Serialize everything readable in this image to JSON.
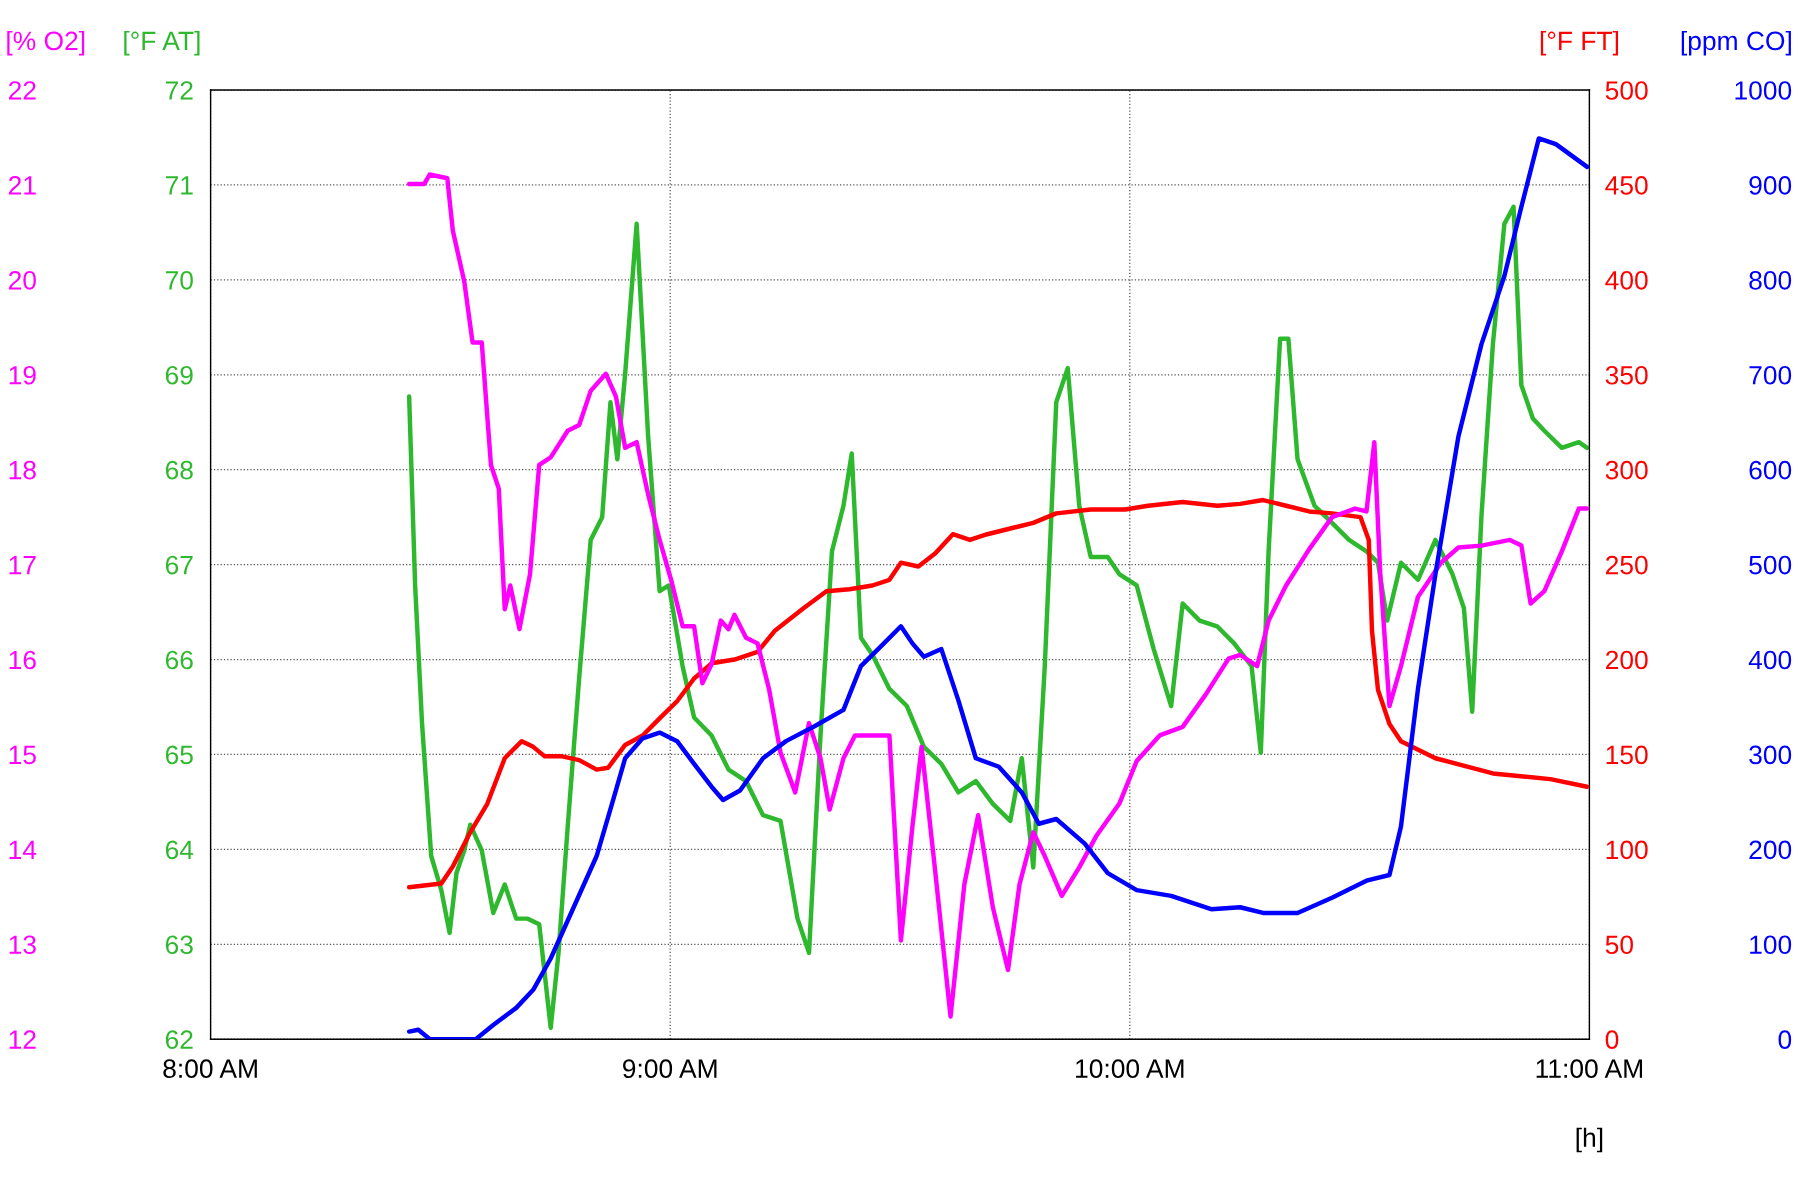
{
  "chart_data": [
    {
      "type": "line",
      "xlabel": "[h]",
      "ylabel": "[°F AT]",
      "y2label": "[°F FT]",
      "xlim": [
        8,
        11
      ],
      "xticks": [
        {
          "value": 8,
          "label": "8:00 AM"
        },
        {
          "value": 9,
          "label": "9:00 AM"
        },
        {
          "value": 10,
          "label": "10:00 AM"
        },
        {
          "value": 11,
          "label": "11:00 AM"
        }
      ],
      "ylim": [
        62,
        72
      ],
      "yticks": [
        62,
        63,
        64,
        65,
        66,
        67,
        68,
        69,
        70,
        71,
        72
      ],
      "y2lim": [
        0,
        500
      ],
      "y2ticks": [
        0,
        50,
        100,
        150,
        200,
        250,
        300,
        350,
        400,
        450,
        500
      ],
      "grid": true,
      "line_style": "solid",
      "series": [
        {
          "axis": "y2",
          "color": "#ff0000",
          "x": [
            8.432,
            8.502,
            8.527,
            8.565,
            8.602,
            8.64,
            8.677,
            8.702,
            8.727,
            8.765,
            8.802,
            8.84,
            8.865,
            8.902,
            8.94,
            8.977,
            9.015,
            9.052,
            9.09,
            9.14,
            9.19,
            9.227,
            9.29,
            9.34,
            9.39,
            9.44,
            9.477,
            9.502,
            9.54,
            9.577,
            9.615,
            9.652,
            9.69,
            9.74,
            9.79,
            9.84,
            9.915,
            9.99,
            10.04,
            10.115,
            10.19,
            10.24,
            10.29,
            10.34,
            10.39,
            10.44,
            10.502,
            10.52,
            10.527,
            10.54,
            10.565,
            10.59,
            10.665,
            10.79,
            10.915,
            10.995
          ],
          "values": [
            80,
            82,
            91,
            109,
            124,
            148,
            157,
            154,
            149,
            149,
            147,
            142,
            143,
            155,
            160,
            169,
            178,
            190,
            198,
            200,
            204,
            215,
            227,
            236,
            237,
            239,
            242,
            251,
            249,
            256,
            266,
            263,
            266,
            269,
            272,
            277,
            279,
            279,
            281,
            283,
            281,
            282,
            284,
            281,
            278,
            277,
            275,
            263,
            215,
            184,
            166,
            157,
            148,
            140,
            137,
            133
          ]
        },
        {
          "color": "#2db82d",
          "x": [
            8.432,
            8.445,
            8.46,
            8.48,
            8.502,
            8.52,
            8.535,
            8.552,
            8.565,
            8.59,
            8.615,
            8.64,
            8.665,
            8.69,
            8.715,
            8.74,
            8.757,
            8.777,
            8.802,
            8.827,
            8.852,
            8.87,
            8.885,
            8.902,
            8.927,
            8.952,
            8.977,
            8.997,
            9.027,
            9.052,
            9.09,
            9.127,
            9.165,
            9.202,
            9.24,
            9.277,
            9.302,
            9.327,
            9.352,
            9.377,
            9.395,
            9.415,
            9.44,
            9.477,
            9.515,
            9.552,
            9.59,
            9.627,
            9.665,
            9.702,
            9.74,
            9.765,
            9.79,
            9.815,
            9.84,
            9.865,
            9.89,
            9.915,
            9.952,
            9.977,
            10.015,
            10.052,
            10.09,
            10.115,
            10.152,
            10.19,
            10.227,
            10.265,
            10.285,
            10.302,
            10.327,
            10.345,
            10.365,
            10.402,
            10.44,
            10.477,
            10.515,
            10.54,
            10.56,
            10.59,
            10.627,
            10.665,
            10.702,
            10.727,
            10.745,
            10.765,
            10.79,
            10.815,
            10.835,
            10.852,
            10.877,
            10.902,
            10.94,
            10.977,
            10.995
          ],
          "values": [
            68.77,
            66.78,
            65.33,
            63.93,
            63.57,
            63.12,
            63.75,
            63.99,
            64.26,
            63.99,
            63.33,
            63.63,
            63.27,
            63.27,
            63.21,
            62.12,
            62.91,
            64.24,
            65.81,
            67.26,
            67.5,
            68.71,
            68.11,
            69.01,
            70.59,
            68.35,
            66.72,
            66.78,
            65.93,
            65.39,
            65.2,
            64.84,
            64.72,
            64.36,
            64.3,
            63.27,
            62.91,
            65.2,
            67.14,
            67.62,
            68.17,
            66.23,
            66.05,
            65.69,
            65.51,
            65.08,
            64.9,
            64.6,
            64.72,
            64.48,
            64.3,
            64.96,
            63.81,
            65.93,
            68.71,
            69.07,
            67.62,
            67.08,
            67.08,
            66.9,
            66.78,
            66.11,
            65.51,
            66.59,
            66.41,
            66.35,
            66.17,
            65.93,
            65.02,
            67.14,
            69.38,
            69.38,
            68.11,
            67.62,
            67.44,
            67.26,
            67.14,
            67.02,
            66.41,
            67.02,
            66.84,
            67.26,
            66.9,
            66.54,
            65.45,
            67.5,
            69.32,
            70.59,
            70.77,
            68.89,
            68.54,
            68.41,
            68.23,
            68.29,
            68.23
          ]
        }
      ]
    },
    {
      "type": "line",
      "ylabel": "[% O2]",
      "y2label": "[ppm CO]",
      "tick_labels": "y",
      "xlim": [
        8,
        11
      ],
      "ylim": [
        12,
        22
      ],
      "yticks": [
        12,
        13,
        14,
        15,
        16,
        17,
        18,
        19,
        20,
        21,
        22
      ],
      "y2lim": [
        0,
        1000
      ],
      "y2ticks": [
        0,
        100,
        200,
        300,
        400,
        500,
        600,
        700,
        800,
        900,
        1000
      ],
      "line_style": "solid",
      "series": [
        {
          "axis": "y2",
          "color": "#0000ff",
          "x": [
            8.432,
            8.452,
            8.477,
            8.577,
            8.615,
            8.665,
            8.702,
            8.74,
            8.79,
            8.84,
            8.877,
            8.902,
            8.94,
            8.977,
            9.015,
            9.052,
            9.09,
            9.115,
            9.152,
            9.202,
            9.252,
            9.315,
            9.377,
            9.415,
            9.465,
            9.502,
            9.527,
            9.552,
            9.59,
            9.627,
            9.665,
            9.715,
            9.765,
            9.802,
            9.84,
            9.902,
            9.952,
            10.015,
            10.09,
            10.177,
            10.24,
            10.29,
            10.365,
            10.44,
            10.515,
            10.565,
            10.59,
            10.627,
            10.665,
            10.715,
            10.765,
            10.815,
            10.852,
            10.89,
            10.927,
            10.995
          ],
          "values": [
            8,
            10,
            0,
            0,
            15,
            33,
            52,
            85,
            139,
            193,
            254,
            296,
            317,
            323,
            314,
            290,
            266,
            252,
            262,
            296,
            314,
            330,
            347,
            393,
            417,
            435,
            417,
            403,
            411,
            357,
            296,
            287,
            260,
            227,
            232,
            206,
            175,
            157,
            151,
            137,
            139,
            133,
            133,
            149,
            167,
            173,
            224,
            369,
            490,
            635,
            732,
            804,
            877,
            949,
            943,
            919
          ]
        },
        {
          "color": "#ff00ff",
          "x": [
            8.432,
            8.465,
            8.477,
            8.515,
            8.527,
            8.552,
            8.57,
            8.59,
            8.61,
            8.627,
            8.64,
            8.652,
            8.672,
            8.695,
            8.715,
            8.74,
            8.777,
            8.802,
            8.827,
            8.86,
            8.882,
            8.902,
            8.927,
            8.952,
            8.977,
            9.002,
            9.027,
            9.052,
            9.07,
            9.09,
            9.11,
            9.127,
            9.14,
            9.165,
            9.19,
            9.215,
            9.24,
            9.272,
            9.302,
            9.327,
            9.347,
            9.377,
            9.402,
            9.44,
            9.477,
            9.502,
            9.527,
            9.547,
            9.577,
            9.61,
            9.64,
            9.67,
            9.702,
            9.735,
            9.76,
            9.79,
            9.815,
            9.852,
            9.89,
            9.927,
            9.977,
            10.015,
            10.065,
            10.115,
            10.165,
            10.215,
            10.24,
            10.277,
            10.302,
            10.34,
            10.39,
            10.44,
            10.49,
            10.515,
            10.532,
            10.545,
            10.565,
            10.59,
            10.627,
            10.677,
            10.715,
            10.765,
            10.827,
            10.852,
            10.872,
            10.902,
            10.94,
            10.977,
            10.995
          ],
          "values": [
            21.01,
            21.01,
            21.11,
            21.07,
            20.52,
            19.98,
            19.34,
            19.34,
            18.05,
            17.8,
            16.53,
            16.78,
            16.32,
            16.9,
            18.05,
            18.13,
            18.41,
            18.47,
            18.83,
            19.01,
            18.77,
            18.23,
            18.29,
            17.74,
            17.26,
            16.84,
            16.35,
            16.35,
            15.75,
            15.95,
            16.41,
            16.32,
            16.47,
            16.23,
            16.17,
            15.69,
            15.02,
            14.6,
            15.33,
            14.96,
            14.42,
            14.96,
            15.2,
            15.2,
            15.2,
            13.04,
            14.24,
            15.08,
            13.75,
            12.24,
            13.63,
            14.36,
            13.39,
            12.73,
            13.63,
            14.18,
            13.93,
            13.51,
            13.81,
            14.14,
            14.48,
            14.93,
            15.2,
            15.29,
            15.63,
            16.01,
            16.05,
            15.93,
            16.41,
            16.78,
            17.16,
            17.5,
            17.59,
            17.56,
            18.29,
            16.9,
            15.51,
            15.93,
            16.66,
            17.02,
            17.18,
            17.2,
            17.26,
            17.2,
            16.59,
            16.72,
            17.14,
            17.59,
            17.59
          ]
        }
      ]
    }
  ]
}
